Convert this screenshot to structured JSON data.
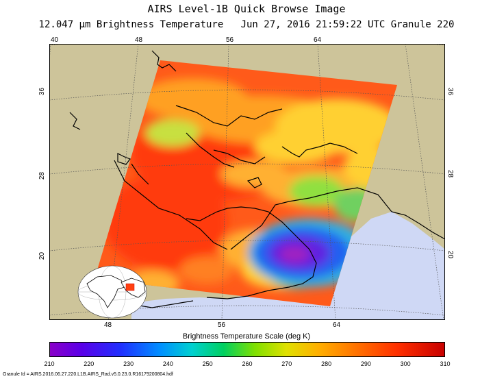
{
  "title": "AIRS Level-1B Quick Browse Image",
  "subtitle_left": "12.047 μm Brightness Temperature",
  "subtitle_right": "Jun 27, 2016 21:59:22 UTC  Granule 220",
  "map": {
    "lon_top": [
      "40",
      "48",
      "56",
      "64"
    ],
    "lon_bottom": [
      "48",
      "56",
      "64"
    ],
    "lat_left": [
      "36",
      "28",
      "20"
    ],
    "lat_right": [
      "36",
      "28",
      "20"
    ],
    "colors": {
      "land": "#cdc49a",
      "water": "#cfd8f5",
      "gridline": "#555555"
    }
  },
  "scale": {
    "title": "Brightness Temperature Scale (deg K)",
    "ticks": [
      "210",
      "220",
      "230",
      "240",
      "250",
      "260",
      "270",
      "280",
      "290",
      "300",
      "310"
    ]
  },
  "footer": "Granule Id = AIRS.2016.06.27.220.L1B.AIRS_Rad.v5.0.23.0.R16179200804.hdf"
}
